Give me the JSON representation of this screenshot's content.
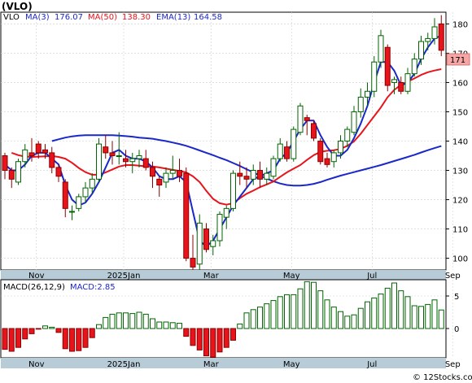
{
  "title": "(VLO)",
  "legend": {
    "ticker": "VLO",
    "ma3_label": "MA(3)",
    "ma3_value": "176.07",
    "ma50_label": "MA(50)",
    "ma50_value": "138.30",
    "ema13_label": "EMA(13)",
    "ema13_value": "164.58"
  },
  "price_tag": "171",
  "macd_legend": {
    "label": "MACD(26,12,9)",
    "value": "MACD:2.85"
  },
  "watermark": "© 12Stocks.com",
  "colors": {
    "up": "#006400",
    "down": "#e8141c",
    "blue": "#1a27c9",
    "red": "#e8141c",
    "bg": "#ffffff",
    "axisbg": "#b8ccd8",
    "tag": "#f7a6a6"
  },
  "chart_data": [
    {
      "type": "candlestick",
      "name": "price",
      "ylim": [
        96,
        184
      ],
      "yticks": [
        100,
        110,
        120,
        130,
        140,
        150,
        160,
        170,
        180
      ],
      "xtick_labels": [
        "Nov",
        "2025Jan",
        "Mar",
        "May",
        "Jul",
        "Sep",
        "Nov"
      ],
      "xtick_index": [
        3,
        16,
        29,
        41,
        53,
        65,
        77
      ],
      "ohlc": [
        [
          135,
          136,
          127,
          130
        ],
        [
          130,
          131,
          124,
          127
        ],
        [
          126,
          134,
          125,
          133
        ],
        [
          133,
          139,
          131,
          137
        ],
        [
          136,
          141,
          133,
          135
        ],
        [
          139,
          140,
          134,
          136
        ],
        [
          137,
          139,
          134,
          136
        ],
        [
          136,
          138,
          129,
          131
        ],
        [
          131,
          132,
          126,
          128
        ],
        [
          126,
          127,
          114,
          117
        ],
        [
          116,
          118,
          113,
          116
        ],
        [
          117,
          122,
          116,
          121
        ],
        [
          121,
          126,
          119,
          124
        ],
        [
          124,
          129,
          122,
          127
        ],
        [
          127,
          141,
          126,
          139
        ],
        [
          138,
          142,
          134,
          136
        ],
        [
          136,
          140,
          132,
          135
        ],
        [
          135,
          143,
          132,
          135
        ],
        [
          134,
          137,
          131,
          133
        ],
        [
          133,
          136,
          129,
          134
        ],
        [
          134,
          137,
          131,
          135
        ],
        [
          134,
          137,
          130,
          131
        ],
        [
          131,
          133,
          124,
          128
        ],
        [
          127,
          128,
          121,
          125
        ],
        [
          126,
          131,
          124,
          129
        ],
        [
          129,
          135,
          127,
          130
        ],
        [
          130,
          134,
          126,
          128
        ],
        [
          129,
          131,
          99,
          100
        ],
        [
          100,
          108,
          94,
          97
        ],
        [
          98,
          115,
          96,
          112
        ],
        [
          110,
          112,
          102,
          103
        ],
        [
          104,
          108,
          101,
          106
        ],
        [
          106,
          116,
          104,
          115
        ],
        [
          114,
          118,
          110,
          117
        ],
        [
          117,
          130,
          116,
          129
        ],
        [
          129,
          133,
          125,
          128
        ],
        [
          128,
          131,
          124,
          127
        ],
        [
          127,
          132,
          125,
          130
        ],
        [
          130,
          133,
          124,
          127
        ],
        [
          127,
          131,
          125,
          129
        ],
        [
          128,
          135,
          127,
          134
        ],
        [
          134,
          141,
          133,
          139
        ],
        [
          138,
          140,
          133,
          134
        ],
        [
          134,
          145,
          133,
          144
        ],
        [
          143,
          153,
          142,
          152
        ],
        [
          148,
          149,
          142,
          147
        ],
        [
          146,
          147,
          140,
          141
        ],
        [
          140,
          141,
          132,
          133
        ],
        [
          134,
          136,
          131,
          132
        ],
        [
          133,
          137,
          131,
          136
        ],
        [
          136,
          142,
          134,
          140
        ],
        [
          140,
          145,
          138,
          144
        ],
        [
          143,
          152,
          142,
          150
        ],
        [
          150,
          158,
          148,
          155
        ],
        [
          155,
          160,
          152,
          157
        ],
        [
          157,
          169,
          155,
          167
        ],
        [
          167,
          178,
          165,
          176
        ],
        [
          172,
          173,
          157,
          159
        ],
        [
          160,
          162,
          156,
          161
        ],
        [
          160,
          162,
          156,
          157
        ],
        [
          157,
          165,
          156,
          163
        ],
        [
          163,
          170,
          162,
          168
        ],
        [
          168,
          176,
          166,
          174
        ],
        [
          174,
          177,
          171,
          175
        ],
        [
          175,
          182,
          173,
          179
        ],
        [
          180,
          183,
          169,
          171
        ]
      ],
      "series": [
        {
          "label_key": "MA(50)",
          "color": "blue",
          "values": [
            140,
            140.6,
            141.2,
            141.6,
            141.9,
            142,
            142,
            142,
            142,
            142,
            141.9,
            141.7,
            141.5,
            141.2,
            141,
            140.8,
            140.4,
            140,
            139.5,
            139,
            138.4,
            137.6,
            136.8,
            136,
            135.2,
            134.3,
            133.5,
            132.5,
            131.5,
            130.4,
            129.3,
            128.2,
            127.2,
            126.3,
            125.5,
            125,
            124.8,
            124.8,
            125,
            125.4,
            126,
            126.8,
            127.5,
            128.2,
            128.8,
            129.4,
            130,
            130.6,
            131.2,
            131.8,
            132.5,
            133.2,
            133.9,
            134.6,
            135.3,
            136.1,
            136.9,
            137.6,
            138.3
          ]
        },
        {
          "label_key": "EMA(13)",
          "color": "red",
          "values": [
            136,
            135.2,
            134.7,
            134.6,
            134.7,
            134.8,
            134.9,
            134.6,
            134,
            132.6,
            130.8,
            129.4,
            128.5,
            128.5,
            129.3,
            130.3,
            131.3,
            131.8,
            131.8,
            131.6,
            131.4,
            131.3,
            131,
            130.6,
            130.2,
            129.8,
            129.3,
            128,
            126,
            123,
            120.3,
            118.8,
            118.3,
            118.8,
            120.5,
            122,
            123.1,
            124.3,
            125.2,
            126.2,
            127.8,
            129.3,
            130.6,
            131.8,
            133.6,
            135.2,
            136.3,
            136.7,
            136.9,
            137.3,
            138.4,
            139.9,
            142.5,
            145.5,
            148.5,
            151.5,
            155,
            157.5,
            159.2,
            160.3,
            161.4,
            162.6,
            163.5,
            164.1,
            164.58
          ]
        },
        {
          "label_key": "MA(3)",
          "color": "blue",
          "values": [
            132,
            130,
            130,
            132,
            135,
            136,
            136,
            134,
            132,
            125,
            120,
            118,
            119,
            122,
            126,
            131,
            136,
            137,
            135,
            134,
            134,
            133,
            131,
            128,
            127,
            127,
            128,
            126,
            116,
            106,
            104,
            106,
            110,
            114,
            118,
            121,
            124,
            127,
            128,
            129,
            130,
            134,
            136,
            140,
            144,
            147,
            147,
            142,
            138,
            135,
            135,
            137,
            141,
            146,
            152,
            160,
            167,
            167,
            164,
            159,
            160,
            163,
            168,
            172,
            175,
            176.07
          ]
        }
      ]
    },
    {
      "type": "bar",
      "name": "macd",
      "ylim": [
        -4.5,
        7.5
      ],
      "yticks": [
        -5,
        0,
        5
      ],
      "xtick_labels": [
        "Nov",
        "2025Jan",
        "Mar",
        "May",
        "Jul",
        "Sep",
        "Nov"
      ],
      "values": [
        -3.2,
        -3.5,
        -2.9,
        -1.6,
        -0.8,
        -0.1,
        0.4,
        0.2,
        -0.6,
        -3.1,
        -3.5,
        -3.4,
        -2.9,
        -1.4,
        0.6,
        1.7,
        2.2,
        2.4,
        2.4,
        2.3,
        2.5,
        2.2,
        1.5,
        1.0,
        1.0,
        0.9,
        0.8,
        -1.2,
        -2.6,
        -3.3,
        -4.2,
        -4.4,
        -3.6,
        -2.9,
        -1.8,
        0.7,
        2.4,
        2.9,
        3.3,
        3.8,
        4.3,
        4.9,
        5.2,
        5.2,
        6.1,
        7.2,
        7.1,
        5.8,
        4.4,
        3.3,
        2.6,
        1.9,
        2.1,
        3.1,
        4.1,
        4.7,
        5.3,
        6.2,
        7.0,
        5.8,
        4.9,
        3.5,
        3.4,
        3.7,
        4.4,
        2.85
      ]
    }
  ]
}
